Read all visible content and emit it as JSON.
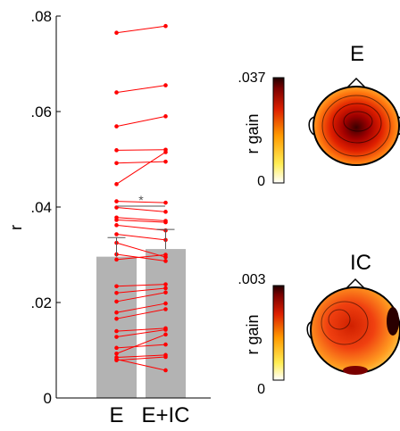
{
  "chart_data": [
    {
      "type": "bar",
      "categories": [
        "E",
        "E+IC"
      ],
      "values": [
        0.0296,
        0.0312
      ],
      "error": [
        0.004,
        0.0041
      ],
      "ylim": [
        0,
        0.08
      ],
      "yticks": [
        0,
        0.02,
        0.04,
        0.06,
        0.08
      ],
      "ytick_labels": [
        "0",
        ".02",
        ".04",
        ".06",
        ".08"
      ],
      "ylabel": "r",
      "significance": "*",
      "bar_color": "#b3b3b3",
      "line_color": "#ff0000",
      "paired_points": [
        [
          0.0765,
          0.0779
        ],
        [
          0.064,
          0.0655
        ],
        [
          0.0569,
          0.059
        ],
        [
          0.0519,
          0.052
        ],
        [
          0.0492,
          0.0495
        ],
        [
          0.0448,
          0.0515
        ],
        [
          0.0412,
          0.0409
        ],
        [
          0.0399,
          0.039
        ],
        [
          0.0378,
          0.0371
        ],
        [
          0.0373,
          0.0368
        ],
        [
          0.0362,
          0.0351
        ],
        [
          0.0343,
          0.0331
        ],
        [
          0.0325,
          0.0295
        ],
        [
          0.0301,
          0.0287
        ],
        [
          0.029,
          0.03
        ],
        [
          0.0234,
          0.0238
        ],
        [
          0.022,
          0.023
        ],
        [
          0.0202,
          0.0221
        ],
        [
          0.0179,
          0.0198
        ],
        [
          0.0166,
          0.0186
        ],
        [
          0.014,
          0.0146
        ],
        [
          0.0128,
          0.0143
        ],
        [
          0.0105,
          0.0112
        ],
        [
          0.0093,
          0.0133
        ],
        [
          0.0085,
          0.009
        ],
        [
          0.0079,
          0.0086
        ],
        [
          0.0081,
          0.0058
        ]
      ]
    },
    {
      "type": "heatmap",
      "title": "E",
      "colorbar_label": "r gain",
      "colorbar_ticks": [
        ".037",
        "0"
      ]
    },
    {
      "type": "heatmap",
      "title": "IC",
      "colorbar_label": "r gain",
      "colorbar_ticks": [
        ".003",
        "0"
      ]
    }
  ]
}
